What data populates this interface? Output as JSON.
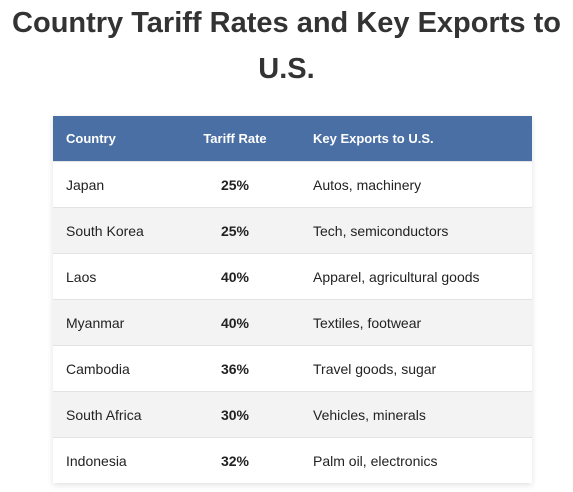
{
  "title": "Country Tariff Rates and Key Exports to U.S.",
  "table": {
    "headers": {
      "country": "Country",
      "tariff_rate": "Tariff Rate",
      "key_exports": "Key Exports to U.S."
    },
    "rows": [
      {
        "country": "Japan",
        "tariff_rate": "25%",
        "key_exports": "Autos, machinery"
      },
      {
        "country": "South Korea",
        "tariff_rate": "25%",
        "key_exports": "Tech, semiconductors"
      },
      {
        "country": "Laos",
        "tariff_rate": "40%",
        "key_exports": "Apparel, agricultural goods"
      },
      {
        "country": "Myanmar",
        "tariff_rate": "40%",
        "key_exports": "Textiles, footwear"
      },
      {
        "country": "Cambodia",
        "tariff_rate": "36%",
        "key_exports": "Travel goods, sugar"
      },
      {
        "country": "South Africa",
        "tariff_rate": "30%",
        "key_exports": "Vehicles, minerals"
      },
      {
        "country": "Indonesia",
        "tariff_rate": "32%",
        "key_exports": "Palm oil, electronics"
      }
    ]
  },
  "colors": {
    "header_bg": "#4a6fa5",
    "header_text": "#ffffff",
    "row_alt_bg": "#f3f3f3"
  }
}
